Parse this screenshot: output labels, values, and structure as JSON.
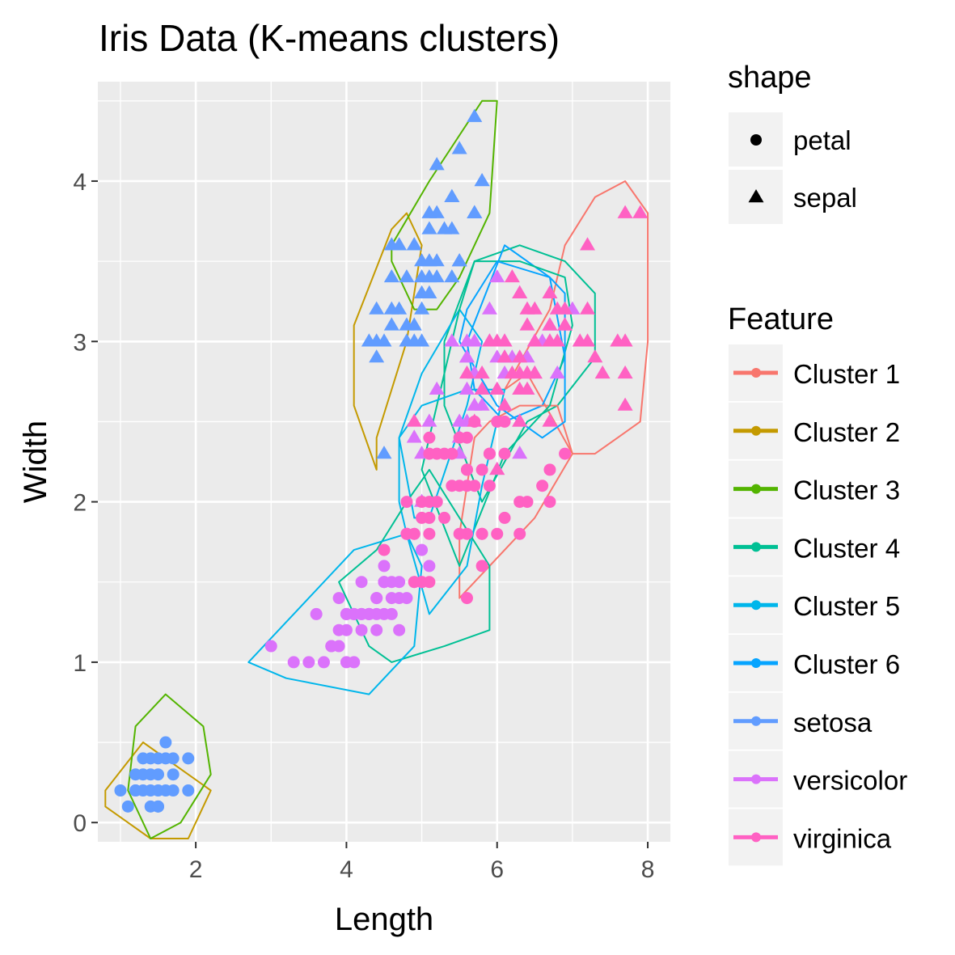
{
  "chart_data": {
    "type": "scatter",
    "title": "Iris Data (K-means clusters)",
    "xlabel": "Length",
    "ylabel": "Width",
    "xlim": [
      0.7,
      8.3
    ],
    "ylim": [
      -0.12,
      4.62
    ],
    "xticks": [
      2,
      4,
      6,
      8
    ],
    "yticks": [
      0,
      1,
      2,
      3,
      4
    ],
    "grid": true,
    "legend_position": "right",
    "shape_legend": {
      "title": "shape",
      "items": [
        {
          "label": "petal",
          "shape": "circle"
        },
        {
          "label": "sepal",
          "shape": "triangle"
        }
      ]
    },
    "color_legend": {
      "title": "Feature",
      "items": [
        {
          "label": "Cluster 1",
          "color": "#F8766D"
        },
        {
          "label": "Cluster 2",
          "color": "#C49A00"
        },
        {
          "label": "Cluster 3",
          "color": "#53B400"
        },
        {
          "label": "Cluster 4",
          "color": "#00C094"
        },
        {
          "label": "Cluster 5",
          "color": "#00B6EB"
        },
        {
          "label": "Cluster 6",
          "color": "#06A4FF"
        },
        {
          "label": "setosa",
          "color": "#619CFF"
        },
        {
          "label": "versicolor",
          "color": "#DB72FB"
        },
        {
          "label": "virginica",
          "color": "#FF61C3"
        }
      ]
    },
    "series": [
      {
        "name": "setosa",
        "shape": "petal",
        "color": "#619CFF",
        "x": [
          1.0,
          1.1,
          1.2,
          1.3,
          1.4,
          1.5,
          1.6,
          1.7,
          1.9,
          1.2,
          1.3,
          1.4,
          1.5,
          1.6,
          1.7,
          1.9,
          1.4,
          1.6,
          1.5,
          1.7,
          1.4,
          1.5,
          1.5,
          1.3,
          1.2
        ],
        "y": [
          0.2,
          0.1,
          0.2,
          0.2,
          0.2,
          0.2,
          0.2,
          0.2,
          0.2,
          0.3,
          0.3,
          0.3,
          0.3,
          0.4,
          0.4,
          0.4,
          0.1,
          0.5,
          0.4,
          0.3,
          0.4,
          0.1,
          0.1,
          0.4,
          0.2
        ]
      },
      {
        "name": "setosa",
        "shape": "sepal",
        "color": "#619CFF",
        "x": [
          4.3,
          4.4,
          4.4,
          4.5,
          4.5,
          4.6,
          4.6,
          4.6,
          4.7,
          4.7,
          4.8,
          4.8,
          4.8,
          4.9,
          4.9,
          4.9,
          5.0,
          5.0,
          5.0,
          5.0,
          5.1,
          5.1,
          5.1,
          5.1,
          5.2,
          5.2,
          5.2,
          5.3,
          5.4,
          5.4,
          5.4,
          5.5,
          5.5,
          5.5,
          5.7,
          5.7,
          5.7,
          5.8,
          4.6,
          5.0,
          5.1,
          4.4,
          4.9,
          5.4,
          5.2,
          5.8,
          5.7
        ],
        "y": [
          3.0,
          2.9,
          3.0,
          3.0,
          2.3,
          3.1,
          3.2,
          3.4,
          3.2,
          3.6,
          3.0,
          3.1,
          3.4,
          3.0,
          3.1,
          3.6,
          3.2,
          3.3,
          3.4,
          3.5,
          3.3,
          3.5,
          3.7,
          3.8,
          3.4,
          3.5,
          3.8,
          3.7,
          3.4,
          3.7,
          3.9,
          3.5,
          4.2,
          3.5,
          3.8,
          4.4,
          3.8,
          4.0,
          3.6,
          3.0,
          3.4,
          3.2,
          3.6,
          3.9,
          4.1,
          4.0,
          3.8
        ]
      },
      {
        "name": "versicolor",
        "shape": "petal",
        "color": "#DB72FB",
        "x": [
          3.0,
          3.3,
          3.5,
          3.6,
          3.7,
          3.8,
          3.9,
          3.9,
          4.0,
          4.0,
          4.0,
          4.1,
          4.1,
          4.2,
          4.2,
          4.2,
          4.3,
          4.3,
          4.4,
          4.4,
          4.4,
          4.5,
          4.5,
          4.5,
          4.6,
          4.6,
          4.7,
          4.7,
          4.7,
          4.8,
          4.8,
          4.9,
          4.9,
          5.0,
          5.0,
          5.1,
          4.5,
          4.6,
          4.2,
          4.0,
          3.9,
          4.0,
          4.1,
          4.5,
          4.4,
          4.3,
          3.8,
          4.8
        ],
        "y": [
          1.1,
          1.0,
          1.0,
          1.3,
          1.0,
          1.1,
          1.1,
          1.4,
          1.0,
          1.2,
          1.3,
          1.0,
          1.3,
          1.2,
          1.3,
          1.5,
          1.3,
          1.3,
          1.2,
          1.3,
          1.4,
          1.3,
          1.5,
          1.6,
          1.3,
          1.4,
          1.2,
          1.4,
          1.5,
          1.4,
          1.8,
          1.5,
          1.8,
          1.5,
          1.7,
          1.6,
          1.5,
          1.5,
          1.3,
          1.3,
          1.2,
          1.3,
          1.3,
          1.5,
          1.4,
          1.3,
          1.1,
          1.8
        ]
      },
      {
        "name": "versicolor",
        "shape": "sepal",
        "color": "#DB72FB",
        "x": [
          4.9,
          5.0,
          5.0,
          5.1,
          5.2,
          5.4,
          5.5,
          5.5,
          5.5,
          5.6,
          5.6,
          5.6,
          5.6,
          5.7,
          5.7,
          5.7,
          5.8,
          5.8,
          5.9,
          5.9,
          6.0,
          6.0,
          6.0,
          6.1,
          6.1,
          6.2,
          6.3,
          6.3,
          6.4,
          6.5,
          6.6,
          6.7,
          6.7,
          6.8,
          6.9,
          7.0,
          5.6,
          5.7,
          6.1,
          5.8,
          6.0,
          6.7,
          6.3
        ],
        "y": [
          2.4,
          2.0,
          2.3,
          2.5,
          2.7,
          3.0,
          2.3,
          2.4,
          2.5,
          2.5,
          2.7,
          2.9,
          3.0,
          2.6,
          2.8,
          3.0,
          2.6,
          2.7,
          3.0,
          3.2,
          2.2,
          2.7,
          3.4,
          2.8,
          3.0,
          2.9,
          2.3,
          2.5,
          2.9,
          2.8,
          3.0,
          3.1,
          3.0,
          2.8,
          3.1,
          3.2,
          2.9,
          2.8,
          2.9,
          2.7,
          2.9,
          3.1,
          3.3
        ]
      },
      {
        "name": "virginica",
        "shape": "petal",
        "color": "#FF61C3",
        "x": [
          4.5,
          4.8,
          4.9,
          5.0,
          5.0,
          5.1,
          5.1,
          5.1,
          5.1,
          5.2,
          5.3,
          5.4,
          5.5,
          5.6,
          5.6,
          5.7,
          5.8,
          5.8,
          5.9,
          6.0,
          6.1,
          6.3,
          6.6,
          6.7,
          6.9,
          4.8,
          5.0,
          5.1,
          5.2,
          5.4,
          5.5,
          5.6,
          5.7,
          5.8,
          6.1,
          5.6,
          6.0,
          6.4,
          6.7,
          6.1,
          5.3,
          5.5,
          5.9,
          5.1,
          4.9,
          5.6,
          5.9,
          6.3,
          5.8,
          5.6
        ],
        "y": [
          1.7,
          1.8,
          1.8,
          1.5,
          2.0,
          1.5,
          1.9,
          2.0,
          2.3,
          2.3,
          2.3,
          2.1,
          2.1,
          1.8,
          2.4,
          2.1,
          1.8,
          2.2,
          2.1,
          2.5,
          2.5,
          1.8,
          2.1,
          2.0,
          2.3,
          2.0,
          1.9,
          2.4,
          2.0,
          2.3,
          1.8,
          2.2,
          2.5,
          1.6,
          1.9,
          2.1,
          1.8,
          2.0,
          2.2,
          2.3,
          1.9,
          2.4,
          2.3,
          1.8,
          1.5,
          1.4,
          2.3,
          2.0,
          1.8,
          2.2
        ]
      },
      {
        "name": "virginica",
        "shape": "sepal",
        "color": "#FF61C3",
        "x": [
          4.9,
          5.6,
          5.7,
          5.8,
          5.8,
          5.9,
          6.0,
          6.0,
          6.1,
          6.1,
          6.2,
          6.3,
          6.3,
          6.3,
          6.4,
          6.4,
          6.4,
          6.5,
          6.5,
          6.5,
          6.7,
          6.7,
          6.7,
          6.8,
          6.9,
          6.9,
          7.1,
          7.2,
          7.2,
          7.2,
          7.3,
          7.4,
          7.6,
          7.7,
          7.7,
          7.7,
          7.9,
          6.0,
          6.2,
          6.3,
          6.4,
          6.5,
          6.7,
          6.8,
          7.7,
          6.1,
          6.3,
          6.4,
          6.9
        ],
        "y": [
          2.5,
          2.8,
          2.5,
          2.7,
          2.8,
          3.0,
          2.2,
          3.0,
          2.6,
          3.0,
          2.8,
          2.5,
          2.7,
          3.3,
          2.7,
          2.8,
          3.2,
          3.0,
          3.2,
          2.8,
          2.5,
          3.3,
          3.1,
          3.0,
          3.1,
          3.2,
          3.0,
          3.6,
          3.2,
          3.0,
          2.9,
          2.8,
          3.0,
          2.6,
          3.8,
          3.0,
          3.8,
          2.7,
          3.4,
          2.9,
          3.1,
          3.0,
          3.0,
          3.2,
          2.8,
          2.9,
          2.8,
          2.8,
          3.1
        ]
      }
    ],
    "hulls": [
      {
        "name": "Cluster 1",
        "color": "#F8766D",
        "points": [
          [
            6.1,
            2.7
          ],
          [
            6.4,
            2.8
          ],
          [
            7.0,
            2.3
          ],
          [
            7.3,
            2.3
          ],
          [
            7.6,
            2.4
          ],
          [
            7.9,
            2.5
          ],
          [
            8.0,
            3.0
          ],
          [
            8.0,
            3.8
          ],
          [
            7.7,
            4.0
          ],
          [
            7.3,
            3.9
          ],
          [
            6.9,
            3.6
          ],
          [
            6.7,
            3.2
          ],
          [
            6.1,
            2.7
          ]
        ]
      },
      {
        "name": "Cluster 2",
        "color": "#C49A00",
        "points": [
          [
            4.4,
            2.4
          ],
          [
            4.8,
            3.0
          ],
          [
            5.0,
            3.6
          ],
          [
            4.8,
            3.8
          ],
          [
            4.6,
            3.7
          ],
          [
            4.1,
            3.1
          ],
          [
            4.1,
            2.6
          ],
          [
            4.4,
            2.2
          ],
          [
            4.4,
            2.4
          ]
        ]
      },
      {
        "name": "Cluster 3",
        "color": "#53B400",
        "points": [
          [
            4.6,
            3.5
          ],
          [
            4.9,
            3.2
          ],
          [
            5.2,
            3.2
          ],
          [
            5.5,
            3.4
          ],
          [
            5.9,
            3.8
          ],
          [
            6.0,
            4.5
          ],
          [
            5.8,
            4.5
          ],
          [
            5.1,
            4.0
          ],
          [
            4.6,
            3.6
          ],
          [
            4.6,
            3.5
          ]
        ]
      },
      {
        "name": "Cluster 4",
        "color": "#00C094",
        "points": [
          [
            5.8,
            2.0
          ],
          [
            6.4,
            2.5
          ],
          [
            6.8,
            2.6
          ],
          [
            7.3,
            2.9
          ],
          [
            7.3,
            3.3
          ],
          [
            6.9,
            3.5
          ],
          [
            6.3,
            3.6
          ],
          [
            5.7,
            3.5
          ],
          [
            5.3,
            3.0
          ],
          [
            5.3,
            2.6
          ],
          [
            5.8,
            2.0
          ]
        ]
      },
      {
        "name": "Cluster 5",
        "color": "#00B6EB",
        "points": [
          [
            4.7,
            2.4
          ],
          [
            5.0,
            2.8
          ],
          [
            5.5,
            3.2
          ],
          [
            5.8,
            3.0
          ],
          [
            5.6,
            2.6
          ],
          [
            5.1,
            1.9
          ],
          [
            4.9,
            1.9
          ],
          [
            4.7,
            2.4
          ]
        ]
      },
      {
        "name": "Cluster 6",
        "color": "#06A4FF",
        "points": [
          [
            5.6,
            3.0
          ],
          [
            6.1,
            3.6
          ],
          [
            6.7,
            3.4
          ],
          [
            6.9,
            2.9
          ],
          [
            6.6,
            2.6
          ],
          [
            6.1,
            2.5
          ],
          [
            5.7,
            2.7
          ],
          [
            5.6,
            3.0
          ]
        ]
      },
      {
        "name": "Cluster 1",
        "color": "#F8766D",
        "points": [
          [
            5.5,
            1.4
          ],
          [
            6.5,
            1.9
          ],
          [
            7.0,
            2.3
          ],
          [
            6.8,
            2.6
          ],
          [
            6.3,
            2.6
          ],
          [
            5.9,
            2.5
          ],
          [
            5.7,
            2.4
          ],
          [
            5.5,
            1.8
          ],
          [
            5.5,
            1.4
          ]
        ]
      },
      {
        "name": "Cluster 4",
        "color": "#00C094",
        "points": [
          [
            5.0,
            2.2
          ],
          [
            5.5,
            1.6
          ],
          [
            6.1,
            2.3
          ],
          [
            6.3,
            2.4
          ],
          [
            6.7,
            2.6
          ],
          [
            7.0,
            3.1
          ],
          [
            6.9,
            3.4
          ],
          [
            6.3,
            3.5
          ],
          [
            5.7,
            3.5
          ],
          [
            5.5,
            3.2
          ],
          [
            5.3,
            2.8
          ],
          [
            5.0,
            2.2
          ]
        ]
      },
      {
        "name": "Cluster 5",
        "color": "#00B6EB",
        "points": [
          [
            4.8,
            1.8
          ],
          [
            5.1,
            1.3
          ],
          [
            5.6,
            1.6
          ],
          [
            5.8,
            2.1
          ],
          [
            6.0,
            2.5
          ],
          [
            6.1,
            2.7
          ],
          [
            5.6,
            2.7
          ],
          [
            5.0,
            2.6
          ],
          [
            4.7,
            2.4
          ],
          [
            4.7,
            2.0
          ],
          [
            4.8,
            1.8
          ]
        ]
      },
      {
        "name": "Cluster 6",
        "color": "#06A4FF",
        "points": [
          [
            5.5,
            3.0
          ],
          [
            6.0,
            2.6
          ],
          [
            6.6,
            2.4
          ],
          [
            6.9,
            2.5
          ],
          [
            6.9,
            3.3
          ],
          [
            6.7,
            3.4
          ],
          [
            6.0,
            3.5
          ],
          [
            5.6,
            3.2
          ],
          [
            5.5,
            3.0
          ]
        ]
      },
      {
        "name": "Cluster 4",
        "color": "#00C094",
        "points": [
          [
            3.9,
            1.5
          ],
          [
            4.3,
            1.1
          ],
          [
            4.6,
            1.0
          ],
          [
            5.3,
            1.1
          ],
          [
            5.9,
            1.2
          ],
          [
            5.9,
            1.6
          ],
          [
            5.5,
            1.9
          ],
          [
            5.1,
            2.2
          ],
          [
            4.8,
            2.0
          ],
          [
            4.4,
            1.7
          ],
          [
            3.9,
            1.5
          ]
        ]
      },
      {
        "name": "Cluster 5",
        "color": "#00B6EB",
        "points": [
          [
            2.7,
            1.0
          ],
          [
            3.2,
            0.9
          ],
          [
            4.3,
            0.8
          ],
          [
            4.9,
            1.1
          ],
          [
            5.0,
            1.6
          ],
          [
            4.8,
            1.8
          ],
          [
            4.1,
            1.7
          ],
          [
            3.3,
            1.3
          ],
          [
            2.7,
            1.0
          ]
        ]
      },
      {
        "name": "Cluster 2",
        "color": "#C49A00",
        "points": [
          [
            0.8,
            0.2
          ],
          [
            1.3,
            0.5
          ],
          [
            1.9,
            0.3
          ],
          [
            2.2,
            0.2
          ],
          [
            1.9,
            -0.1
          ],
          [
            1.4,
            -0.1
          ],
          [
            0.8,
            0.1
          ],
          [
            0.8,
            0.2
          ]
        ]
      },
      {
        "name": "Cluster 3",
        "color": "#53B400",
        "points": [
          [
            1.1,
            0.2
          ],
          [
            1.2,
            0.6
          ],
          [
            1.6,
            0.8
          ],
          [
            2.1,
            0.6
          ],
          [
            2.2,
            0.3
          ],
          [
            1.8,
            0.0
          ],
          [
            1.4,
            -0.1
          ],
          [
            1.1,
            0.2
          ]
        ]
      }
    ]
  }
}
